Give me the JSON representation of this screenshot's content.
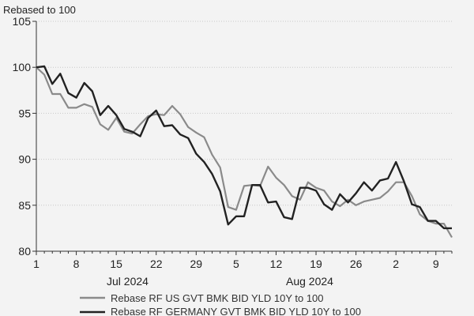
{
  "chart_data": {
    "type": "line",
    "title": "",
    "ylabel": "Rebased to 100",
    "xlabel": "",
    "ylim": [
      80,
      105
    ],
    "yticks": [
      80,
      85,
      90,
      95,
      100,
      105
    ],
    "grid": true,
    "x_tick_labels": [
      "1",
      "8",
      "15",
      "22",
      "29",
      "5",
      "12",
      "19",
      "26",
      "2",
      "9"
    ],
    "month_labels": [
      "Jul 2024",
      "Aug 2024"
    ],
    "legend_position": "bottom",
    "colors": {
      "us": "#8a8a8a",
      "germany": "#222222",
      "grid": "#c8c8c8",
      "axis": "#333333"
    },
    "series": [
      {
        "name": "Rebase RF US GVT BMK BID YLD 10Y to 100",
        "values": [
          100.0,
          99.2,
          97.1,
          97.1,
          95.6,
          95.6,
          96.0,
          95.7,
          93.8,
          93.2,
          94.5,
          93.0,
          92.8,
          93.8,
          94.7,
          94.9,
          94.8,
          95.8,
          94.9,
          93.5,
          92.9,
          92.4,
          90.5,
          89.1,
          84.8,
          84.5,
          87.1,
          87.2,
          87.1,
          89.2,
          88.0,
          87.2,
          86.0,
          85.6,
          87.5,
          86.9,
          86.6,
          85.4,
          84.9,
          85.6,
          85.0,
          85.4,
          85.6,
          85.8,
          86.5,
          87.5,
          87.5,
          86.0,
          84.0,
          83.3,
          83.0,
          83.0,
          81.5
        ]
      },
      {
        "name": "Rebase RF GERMANY GVT BMK BID YLD 10Y to 100",
        "values": [
          100.0,
          100.1,
          98.2,
          99.3,
          97.2,
          96.7,
          98.3,
          97.4,
          94.8,
          95.8,
          94.8,
          93.3,
          93.0,
          92.5,
          94.5,
          95.3,
          93.6,
          93.7,
          92.7,
          92.3,
          90.6,
          89.7,
          88.4,
          86.5,
          82.9,
          83.8,
          83.8,
          87.2,
          87.2,
          85.3,
          85.4,
          83.7,
          83.5,
          86.9,
          86.9,
          86.6,
          85.1,
          84.5,
          86.2,
          85.3,
          86.3,
          87.5,
          86.6,
          87.7,
          87.9,
          89.7,
          87.6,
          85.1,
          84.8,
          83.3,
          83.3,
          82.5,
          82.5
        ]
      }
    ]
  }
}
